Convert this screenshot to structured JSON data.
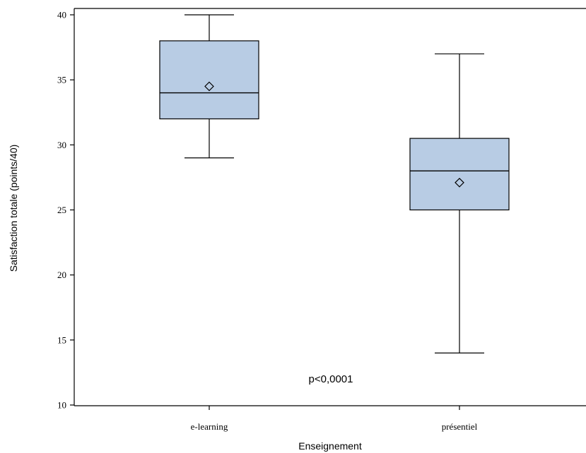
{
  "chart_data": {
    "type": "box",
    "title": "",
    "xlabel": "Enseignement",
    "ylabel": "Satisfaction totale (points/40)",
    "ylim": [
      10,
      40
    ],
    "yticks": [
      10,
      15,
      20,
      25,
      30,
      35,
      40
    ],
    "categories": [
      "e-learning",
      "présentiel"
    ],
    "boxes": [
      {
        "category": "e-learning",
        "min": 29,
        "q1": 32,
        "median": 34,
        "q3": 38,
        "max": 40,
        "mean": 34.5
      },
      {
        "category": "présentiel",
        "min": 14,
        "q1": 25,
        "median": 28,
        "q3": 30.5,
        "max": 37,
        "mean": 27.1
      }
    ],
    "annotation": "p<0,0001",
    "box_fill": "#b8cce4",
    "box_stroke": "#000000",
    "grid": false
  }
}
